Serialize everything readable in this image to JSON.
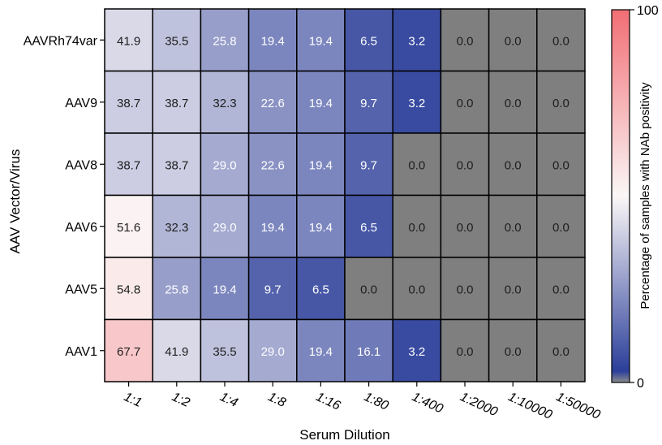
{
  "chart_data": {
    "type": "heatmap",
    "title": "",
    "xlabel": "Serum Dilution",
    "ylabel": "AAV Vector/Virus",
    "x_categories": [
      "1:1",
      "1:2",
      "1:4",
      "1:8",
      "1:16",
      "1:80",
      "1:400",
      "1:2000",
      "1:10000",
      "1:50000"
    ],
    "y_categories": [
      "AAVRh74var",
      "AAV9",
      "AAV8",
      "AAV6",
      "AAV5",
      "AAV1"
    ],
    "values": [
      [
        41.9,
        35.5,
        25.8,
        19.4,
        19.4,
        6.5,
        3.2,
        0.0,
        0.0,
        0.0
      ],
      [
        38.7,
        38.7,
        32.3,
        22.6,
        19.4,
        9.7,
        3.2,
        0.0,
        0.0,
        0.0
      ],
      [
        38.7,
        38.7,
        29.0,
        22.6,
        19.4,
        9.7,
        0.0,
        0.0,
        0.0,
        0.0
      ],
      [
        51.6,
        32.3,
        29.0,
        19.4,
        19.4,
        6.5,
        0.0,
        0.0,
        0.0,
        0.0
      ],
      [
        54.8,
        25.8,
        19.4,
        9.7,
        6.5,
        0.0,
        0.0,
        0.0,
        0.0,
        0.0
      ],
      [
        67.7,
        41.9,
        35.5,
        29.0,
        19.4,
        16.1,
        3.2,
        0.0,
        0.0,
        0.0
      ]
    ],
    "colorbar": {
      "label": "Percentage of samples with NAb positivity",
      "min": 0,
      "max": 100,
      "tick_labels": [
        "0",
        "100"
      ],
      "colormap": "blue-white-red",
      "colors": {
        "low": "#2c3f9a",
        "mid": "#fbf7f7",
        "high": "#f16e74"
      }
    },
    "zero_cell_color": "#7f7f7f",
    "cell_border_color": "#000000",
    "grid": false
  }
}
